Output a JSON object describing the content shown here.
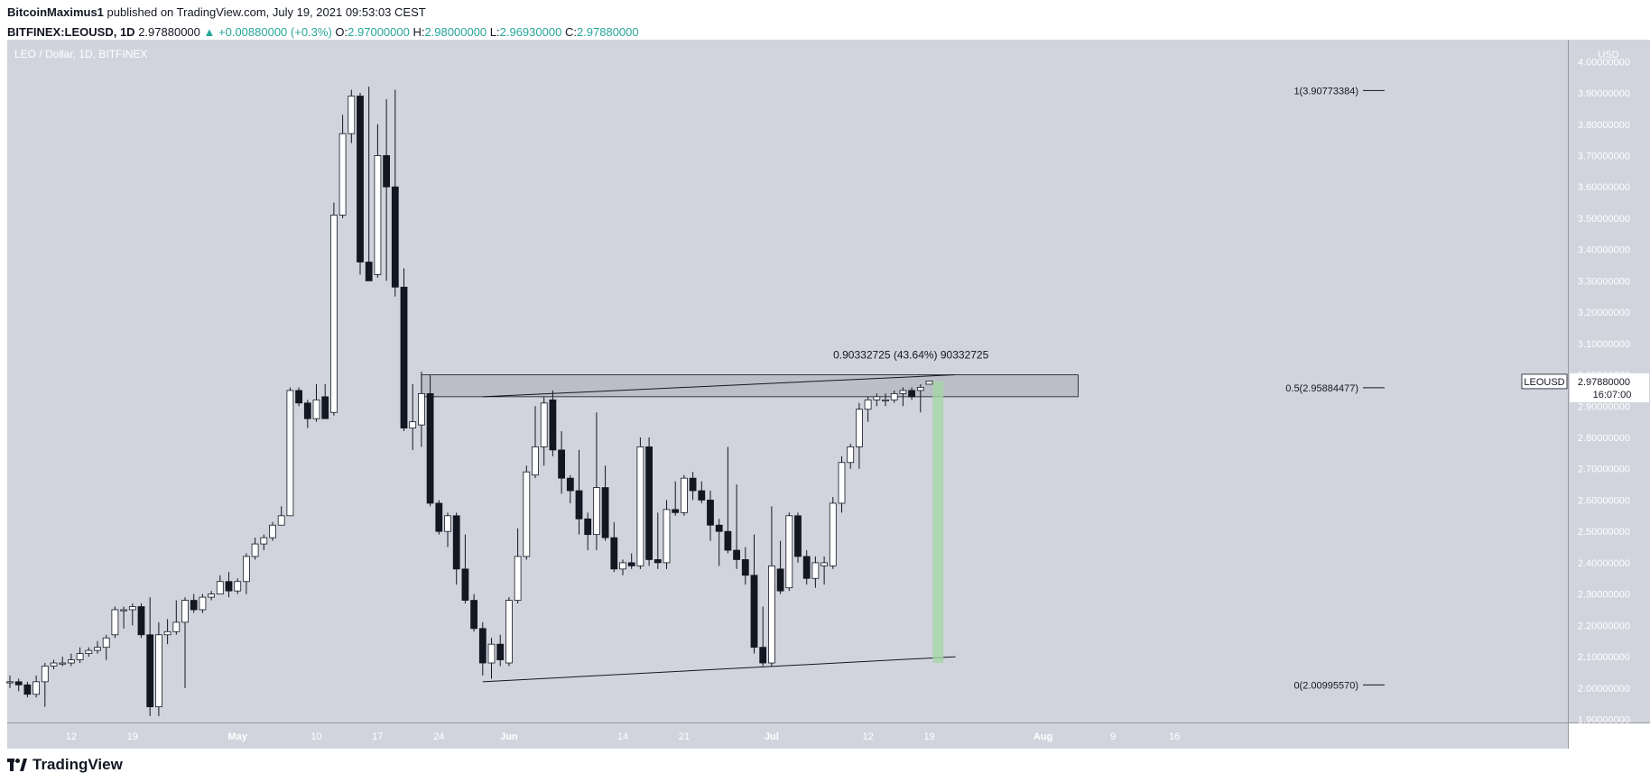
{
  "header": {
    "author": "BitcoinMaximus1",
    "published": "published on TradingView.com, July 19, 2021 09:53:03 CEST",
    "symbol": "BITFINEX:LEOUSD, 1D",
    "last": "2.97880000",
    "change_arrow": "▲",
    "change": "+0.00880000 (+0.3%)",
    "o_label": "O:",
    "o": "2.97000000",
    "h_label": "H:",
    "h": "2.98000000",
    "l_label": "L:",
    "l": "2.96930000",
    "c_label": "C:",
    "c": "2.97880000"
  },
  "footer": {
    "brand": "TradingView",
    "logo_icon": "tradingview-logo-icon"
  },
  "colors": {
    "plot_bg": "#d1d4dd",
    "up_body": "#ffffff",
    "down_body": "#131722",
    "zone": "#a9acb5",
    "measure": "#a5d6a7"
  },
  "chart_data": {
    "type": "candlestick",
    "title": "LEO / Dollar, 1D, BITFINEX",
    "currency_label": "USD",
    "ylim": [
      1.89,
      4.07
    ],
    "y_ticks": [
      "1.90000000",
      "2.00000000",
      "2.10000000",
      "2.20000000",
      "2.30000000",
      "2.40000000",
      "2.50000000",
      "2.60000000",
      "2.70000000",
      "2.80000000",
      "2.90000000",
      "3.00000000",
      "3.10000000",
      "3.20000000",
      "3.30000000",
      "3.40000000",
      "3.50000000",
      "3.60000000",
      "3.70000000",
      "3.80000000",
      "3.90000000",
      "4.00000000"
    ],
    "x_start": "2021-04-05",
    "x_ticks": [
      {
        "label": "12",
        "date": "2021-04-12"
      },
      {
        "label": "19",
        "date": "2021-04-19"
      },
      {
        "label": "May",
        "date": "2021-05-01"
      },
      {
        "label": "10",
        "date": "2021-05-10"
      },
      {
        "label": "17",
        "date": "2021-05-17"
      },
      {
        "label": "24",
        "date": "2021-05-24"
      },
      {
        "label": "Jun",
        "date": "2021-06-01"
      },
      {
        "label": "14",
        "date": "2021-06-14"
      },
      {
        "label": "21",
        "date": "2021-06-21"
      },
      {
        "label": "Jul",
        "date": "2021-07-01"
      },
      {
        "label": "12",
        "date": "2021-07-12"
      },
      {
        "label": "19",
        "date": "2021-07-19"
      },
      {
        "label": "Aug",
        "date": "2021-08-01"
      },
      {
        "label": "9",
        "date": "2021-08-09"
      },
      {
        "label": "16",
        "date": "2021-08-16"
      }
    ],
    "candles": [
      {
        "d": "2021-04-05",
        "o": 2.02,
        "h": 2.04,
        "l": 2.0,
        "c": 2.02
      },
      {
        "d": "2021-04-06",
        "o": 2.02,
        "h": 2.03,
        "l": 1.99,
        "c": 2.01
      },
      {
        "d": "2021-04-07",
        "o": 2.01,
        "h": 2.02,
        "l": 1.97,
        "c": 1.98
      },
      {
        "d": "2021-04-08",
        "o": 1.98,
        "h": 2.04,
        "l": 1.97,
        "c": 2.02
      },
      {
        "d": "2021-04-09",
        "o": 2.02,
        "h": 2.08,
        "l": 1.94,
        "c": 2.07
      },
      {
        "d": "2021-04-10",
        "o": 2.07,
        "h": 2.09,
        "l": 2.06,
        "c": 2.08
      },
      {
        "d": "2021-04-11",
        "o": 2.08,
        "h": 2.1,
        "l": 2.07,
        "c": 2.08
      },
      {
        "d": "2021-04-12",
        "o": 2.08,
        "h": 2.11,
        "l": 2.07,
        "c": 2.09
      },
      {
        "d": "2021-04-13",
        "o": 2.09,
        "h": 2.13,
        "l": 2.08,
        "c": 2.11
      },
      {
        "d": "2021-04-14",
        "o": 2.11,
        "h": 2.13,
        "l": 2.1,
        "c": 2.12
      },
      {
        "d": "2021-04-15",
        "o": 2.12,
        "h": 2.15,
        "l": 2.11,
        "c": 2.13
      },
      {
        "d": "2021-04-16",
        "o": 2.13,
        "h": 2.17,
        "l": 2.09,
        "c": 2.16
      },
      {
        "d": "2021-04-17",
        "o": 2.17,
        "h": 2.26,
        "l": 2.16,
        "c": 2.25
      },
      {
        "d": "2021-04-18",
        "o": 2.25,
        "h": 2.26,
        "l": 2.19,
        "c": 2.25
      },
      {
        "d": "2021-04-19",
        "o": 2.25,
        "h": 2.27,
        "l": 2.2,
        "c": 2.26
      },
      {
        "d": "2021-04-20",
        "o": 2.26,
        "h": 2.27,
        "l": 2.16,
        "c": 2.17
      },
      {
        "d": "2021-04-21",
        "o": 2.17,
        "h": 2.29,
        "l": 1.91,
        "c": 1.94
      },
      {
        "d": "2021-04-22",
        "o": 1.94,
        "h": 2.21,
        "l": 1.91,
        "c": 2.17
      },
      {
        "d": "2021-04-23",
        "o": 2.17,
        "h": 2.22,
        "l": 2.14,
        "c": 2.18
      },
      {
        "d": "2021-04-24",
        "o": 2.18,
        "h": 2.28,
        "l": 2.17,
        "c": 2.21
      },
      {
        "d": "2021-04-25",
        "o": 2.21,
        "h": 2.29,
        "l": 2.0,
        "c": 2.28
      },
      {
        "d": "2021-04-26",
        "o": 2.28,
        "h": 2.3,
        "l": 2.24,
        "c": 2.25
      },
      {
        "d": "2021-04-27",
        "o": 2.25,
        "h": 2.3,
        "l": 2.24,
        "c": 2.29
      },
      {
        "d": "2021-04-28",
        "o": 2.29,
        "h": 2.31,
        "l": 2.28,
        "c": 2.3
      },
      {
        "d": "2021-04-29",
        "o": 2.3,
        "h": 2.36,
        "l": 2.3,
        "c": 2.34
      },
      {
        "d": "2021-04-30",
        "o": 2.34,
        "h": 2.37,
        "l": 2.29,
        "c": 2.31
      },
      {
        "d": "2021-05-01",
        "o": 2.31,
        "h": 2.35,
        "l": 2.3,
        "c": 2.34
      },
      {
        "d": "2021-05-02",
        "o": 2.34,
        "h": 2.43,
        "l": 2.3,
        "c": 2.42
      },
      {
        "d": "2021-05-03",
        "o": 2.42,
        "h": 2.48,
        "l": 2.41,
        "c": 2.46
      },
      {
        "d": "2021-05-04",
        "o": 2.46,
        "h": 2.49,
        "l": 2.44,
        "c": 2.48
      },
      {
        "d": "2021-05-05",
        "o": 2.48,
        "h": 2.53,
        "l": 2.47,
        "c": 2.52
      },
      {
        "d": "2021-05-06",
        "o": 2.52,
        "h": 2.58,
        "l": 2.52,
        "c": 2.55
      },
      {
        "d": "2021-05-07",
        "o": 2.55,
        "h": 2.96,
        "l": 2.55,
        "c": 2.95
      },
      {
        "d": "2021-05-08",
        "o": 2.95,
        "h": 2.96,
        "l": 2.9,
        "c": 2.91
      },
      {
        "d": "2021-05-09",
        "o": 2.91,
        "h": 2.92,
        "l": 2.83,
        "c": 2.86
      },
      {
        "d": "2021-05-10",
        "o": 2.86,
        "h": 2.97,
        "l": 2.85,
        "c": 2.92
      },
      {
        "d": "2021-05-11",
        "o": 2.93,
        "h": 2.97,
        "l": 2.86,
        "c": 2.86
      },
      {
        "d": "2021-05-12",
        "o": 2.88,
        "h": 3.55,
        "l": 2.87,
        "c": 3.51
      },
      {
        "d": "2021-05-13",
        "o": 3.51,
        "h": 3.83,
        "l": 3.5,
        "c": 3.77
      },
      {
        "d": "2021-05-14",
        "o": 3.77,
        "h": 3.91,
        "l": 3.74,
        "c": 3.89
      },
      {
        "d": "2021-05-15",
        "o": 3.89,
        "h": 3.9,
        "l": 3.32,
        "c": 3.36
      },
      {
        "d": "2021-05-16",
        "o": 3.36,
        "h": 3.92,
        "l": 3.3,
        "c": 3.3
      },
      {
        "d": "2021-05-17",
        "o": 3.32,
        "h": 3.8,
        "l": 3.31,
        "c": 3.7
      },
      {
        "d": "2021-05-18",
        "o": 3.7,
        "h": 3.88,
        "l": 3.3,
        "c": 3.6
      },
      {
        "d": "2021-05-19",
        "o": 3.6,
        "h": 3.91,
        "l": 3.25,
        "c": 3.28
      },
      {
        "d": "2021-05-20",
        "o": 3.28,
        "h": 3.34,
        "l": 2.82,
        "c": 2.83
      },
      {
        "d": "2021-05-21",
        "o": 2.83,
        "h": 2.97,
        "l": 2.76,
        "c": 2.85
      },
      {
        "d": "2021-05-22",
        "o": 2.84,
        "h": 3.01,
        "l": 2.77,
        "c": 2.94
      },
      {
        "d": "2021-05-23",
        "o": 2.94,
        "h": 3.0,
        "l": 2.58,
        "c": 2.59
      },
      {
        "d": "2021-05-24",
        "o": 2.59,
        "h": 2.6,
        "l": 2.49,
        "c": 2.5
      },
      {
        "d": "2021-05-25",
        "o": 2.5,
        "h": 2.56,
        "l": 2.45,
        "c": 2.55
      },
      {
        "d": "2021-05-26",
        "o": 2.55,
        "h": 2.56,
        "l": 2.33,
        "c": 2.38
      },
      {
        "d": "2021-05-27",
        "o": 2.38,
        "h": 2.49,
        "l": 2.27,
        "c": 2.28
      },
      {
        "d": "2021-05-28",
        "o": 2.28,
        "h": 2.3,
        "l": 2.18,
        "c": 2.19
      },
      {
        "d": "2021-05-29",
        "o": 2.19,
        "h": 2.21,
        "l": 2.04,
        "c": 2.08
      },
      {
        "d": "2021-05-30",
        "o": 2.08,
        "h": 2.16,
        "l": 2.03,
        "c": 2.14
      },
      {
        "d": "2021-05-31",
        "o": 2.14,
        "h": 2.17,
        "l": 2.07,
        "c": 2.09
      },
      {
        "d": "2021-06-01",
        "o": 2.08,
        "h": 2.29,
        "l": 2.07,
        "c": 2.28
      },
      {
        "d": "2021-06-02",
        "o": 2.28,
        "h": 2.51,
        "l": 2.27,
        "c": 2.42
      },
      {
        "d": "2021-06-03",
        "o": 2.42,
        "h": 2.71,
        "l": 2.41,
        "c": 2.69
      },
      {
        "d": "2021-06-04",
        "o": 2.68,
        "h": 2.9,
        "l": 2.67,
        "c": 2.77
      },
      {
        "d": "2021-06-05",
        "o": 2.77,
        "h": 2.93,
        "l": 2.71,
        "c": 2.91
      },
      {
        "d": "2021-06-06",
        "o": 2.92,
        "h": 2.95,
        "l": 2.74,
        "c": 2.76
      },
      {
        "d": "2021-06-07",
        "o": 2.76,
        "h": 2.82,
        "l": 2.62,
        "c": 2.67
      },
      {
        "d": "2021-06-08",
        "o": 2.67,
        "h": 2.68,
        "l": 2.59,
        "c": 2.63
      },
      {
        "d": "2021-06-09",
        "o": 2.63,
        "h": 2.76,
        "l": 2.49,
        "c": 2.54
      },
      {
        "d": "2021-06-10",
        "o": 2.54,
        "h": 2.56,
        "l": 2.44,
        "c": 2.49
      },
      {
        "d": "2021-06-11",
        "o": 2.49,
        "h": 2.88,
        "l": 2.44,
        "c": 2.64
      },
      {
        "d": "2021-06-12",
        "o": 2.64,
        "h": 2.71,
        "l": 2.47,
        "c": 2.48
      },
      {
        "d": "2021-06-13",
        "o": 2.48,
        "h": 2.53,
        "l": 2.37,
        "c": 2.38
      },
      {
        "d": "2021-06-14",
        "o": 2.38,
        "h": 2.41,
        "l": 2.36,
        "c": 2.4
      },
      {
        "d": "2021-06-15",
        "o": 2.4,
        "h": 2.43,
        "l": 2.38,
        "c": 2.39
      },
      {
        "d": "2021-06-16",
        "o": 2.39,
        "h": 2.8,
        "l": 2.38,
        "c": 2.77
      },
      {
        "d": "2021-06-17",
        "o": 2.77,
        "h": 2.8,
        "l": 2.39,
        "c": 2.41
      },
      {
        "d": "2021-06-18",
        "o": 2.41,
        "h": 2.56,
        "l": 2.38,
        "c": 2.4
      },
      {
        "d": "2021-06-19",
        "o": 2.4,
        "h": 2.6,
        "l": 2.38,
        "c": 2.57
      },
      {
        "d": "2021-06-20",
        "o": 2.57,
        "h": 2.66,
        "l": 2.55,
        "c": 2.56
      },
      {
        "d": "2021-06-21",
        "o": 2.56,
        "h": 2.68,
        "l": 2.55,
        "c": 2.67
      },
      {
        "d": "2021-06-22",
        "o": 2.67,
        "h": 2.69,
        "l": 2.6,
        "c": 2.63
      },
      {
        "d": "2021-06-23",
        "o": 2.63,
        "h": 2.66,
        "l": 2.59,
        "c": 2.6
      },
      {
        "d": "2021-06-24",
        "o": 2.6,
        "h": 2.63,
        "l": 2.47,
        "c": 2.52
      },
      {
        "d": "2021-06-25",
        "o": 2.52,
        "h": 2.54,
        "l": 2.39,
        "c": 2.5
      },
      {
        "d": "2021-06-26",
        "o": 2.5,
        "h": 2.77,
        "l": 2.43,
        "c": 2.44
      },
      {
        "d": "2021-06-27",
        "o": 2.44,
        "h": 2.65,
        "l": 2.38,
        "c": 2.41
      },
      {
        "d": "2021-06-28",
        "o": 2.41,
        "h": 2.45,
        "l": 2.33,
        "c": 2.36
      },
      {
        "d": "2021-06-29",
        "o": 2.36,
        "h": 2.49,
        "l": 2.11,
        "c": 2.13
      },
      {
        "d": "2021-06-30",
        "o": 2.13,
        "h": 2.26,
        "l": 2.07,
        "c": 2.08
      },
      {
        "d": "2021-07-01",
        "o": 2.08,
        "h": 2.58,
        "l": 2.07,
        "c": 2.39
      },
      {
        "d": "2021-07-02",
        "o": 2.38,
        "h": 2.47,
        "l": 2.3,
        "c": 2.31
      },
      {
        "d": "2021-07-03",
        "o": 2.32,
        "h": 2.56,
        "l": 2.31,
        "c": 2.55
      },
      {
        "d": "2021-07-04",
        "o": 2.55,
        "h": 2.56,
        "l": 2.4,
        "c": 2.42
      },
      {
        "d": "2021-07-05",
        "o": 2.42,
        "h": 2.44,
        "l": 2.33,
        "c": 2.35
      },
      {
        "d": "2021-07-06",
        "o": 2.35,
        "h": 2.42,
        "l": 2.32,
        "c": 2.4
      },
      {
        "d": "2021-07-07",
        "o": 2.39,
        "h": 2.42,
        "l": 2.33,
        "c": 2.4
      },
      {
        "d": "2021-07-08",
        "o": 2.39,
        "h": 2.61,
        "l": 2.38,
        "c": 2.59
      },
      {
        "d": "2021-07-09",
        "o": 2.59,
        "h": 2.74,
        "l": 2.56,
        "c": 2.72
      },
      {
        "d": "2021-07-10",
        "o": 2.72,
        "h": 2.78,
        "l": 2.7,
        "c": 2.77
      },
      {
        "d": "2021-07-11",
        "o": 2.77,
        "h": 2.91,
        "l": 2.7,
        "c": 2.89
      },
      {
        "d": "2021-07-12",
        "o": 2.89,
        "h": 2.93,
        "l": 2.85,
        "c": 2.92
      },
      {
        "d": "2021-07-13",
        "o": 2.92,
        "h": 2.94,
        "l": 2.9,
        "c": 2.93
      },
      {
        "d": "2021-07-14",
        "o": 2.92,
        "h": 2.94,
        "l": 2.9,
        "c": 2.92
      },
      {
        "d": "2021-07-15",
        "o": 2.92,
        "h": 2.95,
        "l": 2.91,
        "c": 2.94
      },
      {
        "d": "2021-07-16",
        "o": 2.94,
        "h": 2.96,
        "l": 2.9,
        "c": 2.95
      },
      {
        "d": "2021-07-17",
        "o": 2.95,
        "h": 2.96,
        "l": 2.92,
        "c": 2.93
      },
      {
        "d": "2021-07-18",
        "o": 2.95,
        "h": 2.97,
        "l": 2.88,
        "c": 2.96
      },
      {
        "d": "2021-07-19",
        "o": 2.97,
        "h": 2.98,
        "l": 2.97,
        "c": 2.98
      }
    ],
    "fib_levels": [
      {
        "label": "1(3.90773384)",
        "value": 3.90773384
      },
      {
        "label": "0.5(2.95884477)",
        "value": 2.95884477
      },
      {
        "label": "0(2.00995570)",
        "value": 2.0099557
      }
    ],
    "resistance_zone": {
      "from": "2021-05-22",
      "to": "2021-08-05",
      "low": 2.93,
      "high": 3.0
    },
    "trendlines": [
      {
        "name": "upper",
        "from": {
          "date": "2021-05-29",
          "value": 2.93
        },
        "to": {
          "date": "2021-07-22",
          "value": 3.0
        }
      },
      {
        "name": "lower",
        "from": {
          "date": "2021-05-29",
          "value": 2.02
        },
        "to": {
          "date": "2021-07-22",
          "value": 2.1
        }
      }
    ],
    "measure": {
      "date": "2021-07-20",
      "from": 2.08,
      "to": 2.98,
      "label": "0.90332725 (43.64%) 90332725"
    },
    "price_tag": {
      "symbol": "LEOUSD",
      "price": "2.97880000",
      "countdown": "16:07:00",
      "value": 2.9788
    }
  }
}
